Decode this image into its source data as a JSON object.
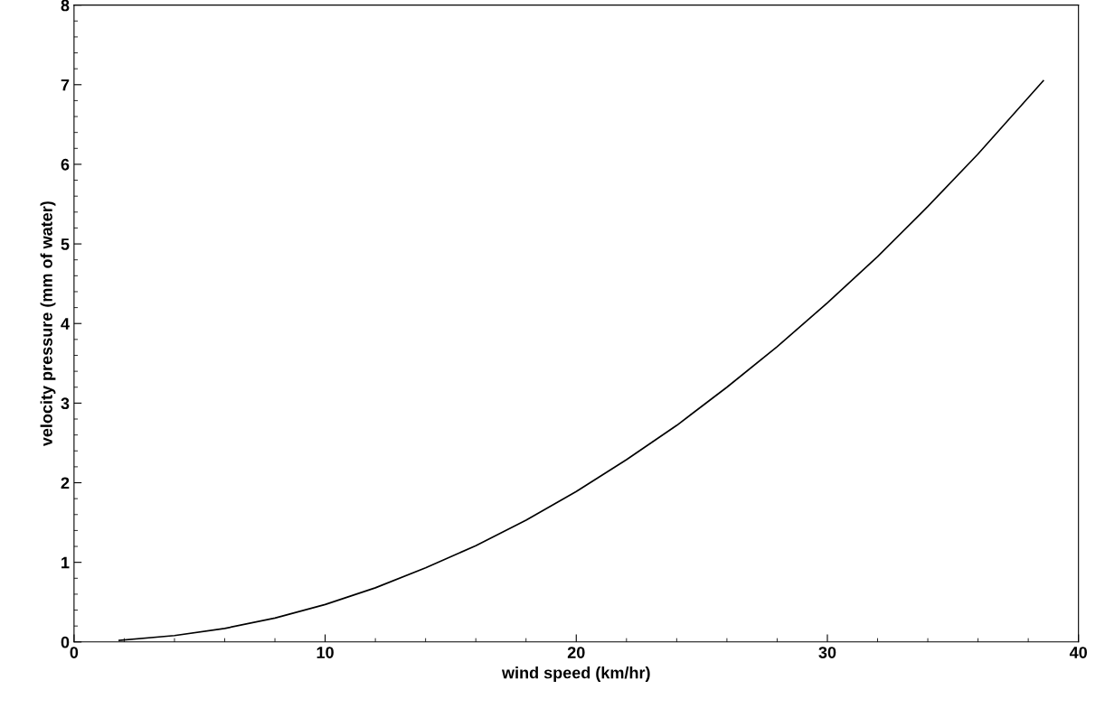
{
  "chart_data": {
    "type": "line",
    "xlabel": "wind speed (km/hr)",
    "ylabel": "velocity pressure (mm of water)",
    "xlim": [
      0,
      40
    ],
    "xticks": [
      0,
      10,
      20,
      30,
      40
    ],
    "ylim": [
      0,
      8
    ],
    "yticks": [
      0,
      1,
      2,
      3,
      4,
      5,
      6,
      7,
      8
    ],
    "grid": false,
    "marker": "none",
    "line_style": "solid",
    "series": [
      {
        "color": "#000000",
        "x": [
          1.8,
          4,
          6,
          8,
          10,
          12,
          14,
          16,
          18,
          20,
          22,
          24,
          26,
          28,
          30,
          32,
          34,
          36,
          38.6
        ],
        "values": [
          0.02,
          0.08,
          0.17,
          0.3,
          0.47,
          0.68,
          0.93,
          1.21,
          1.53,
          1.89,
          2.29,
          2.72,
          3.2,
          3.71,
          4.26,
          4.84,
          5.47,
          6.13,
          7.05
        ]
      }
    ]
  }
}
